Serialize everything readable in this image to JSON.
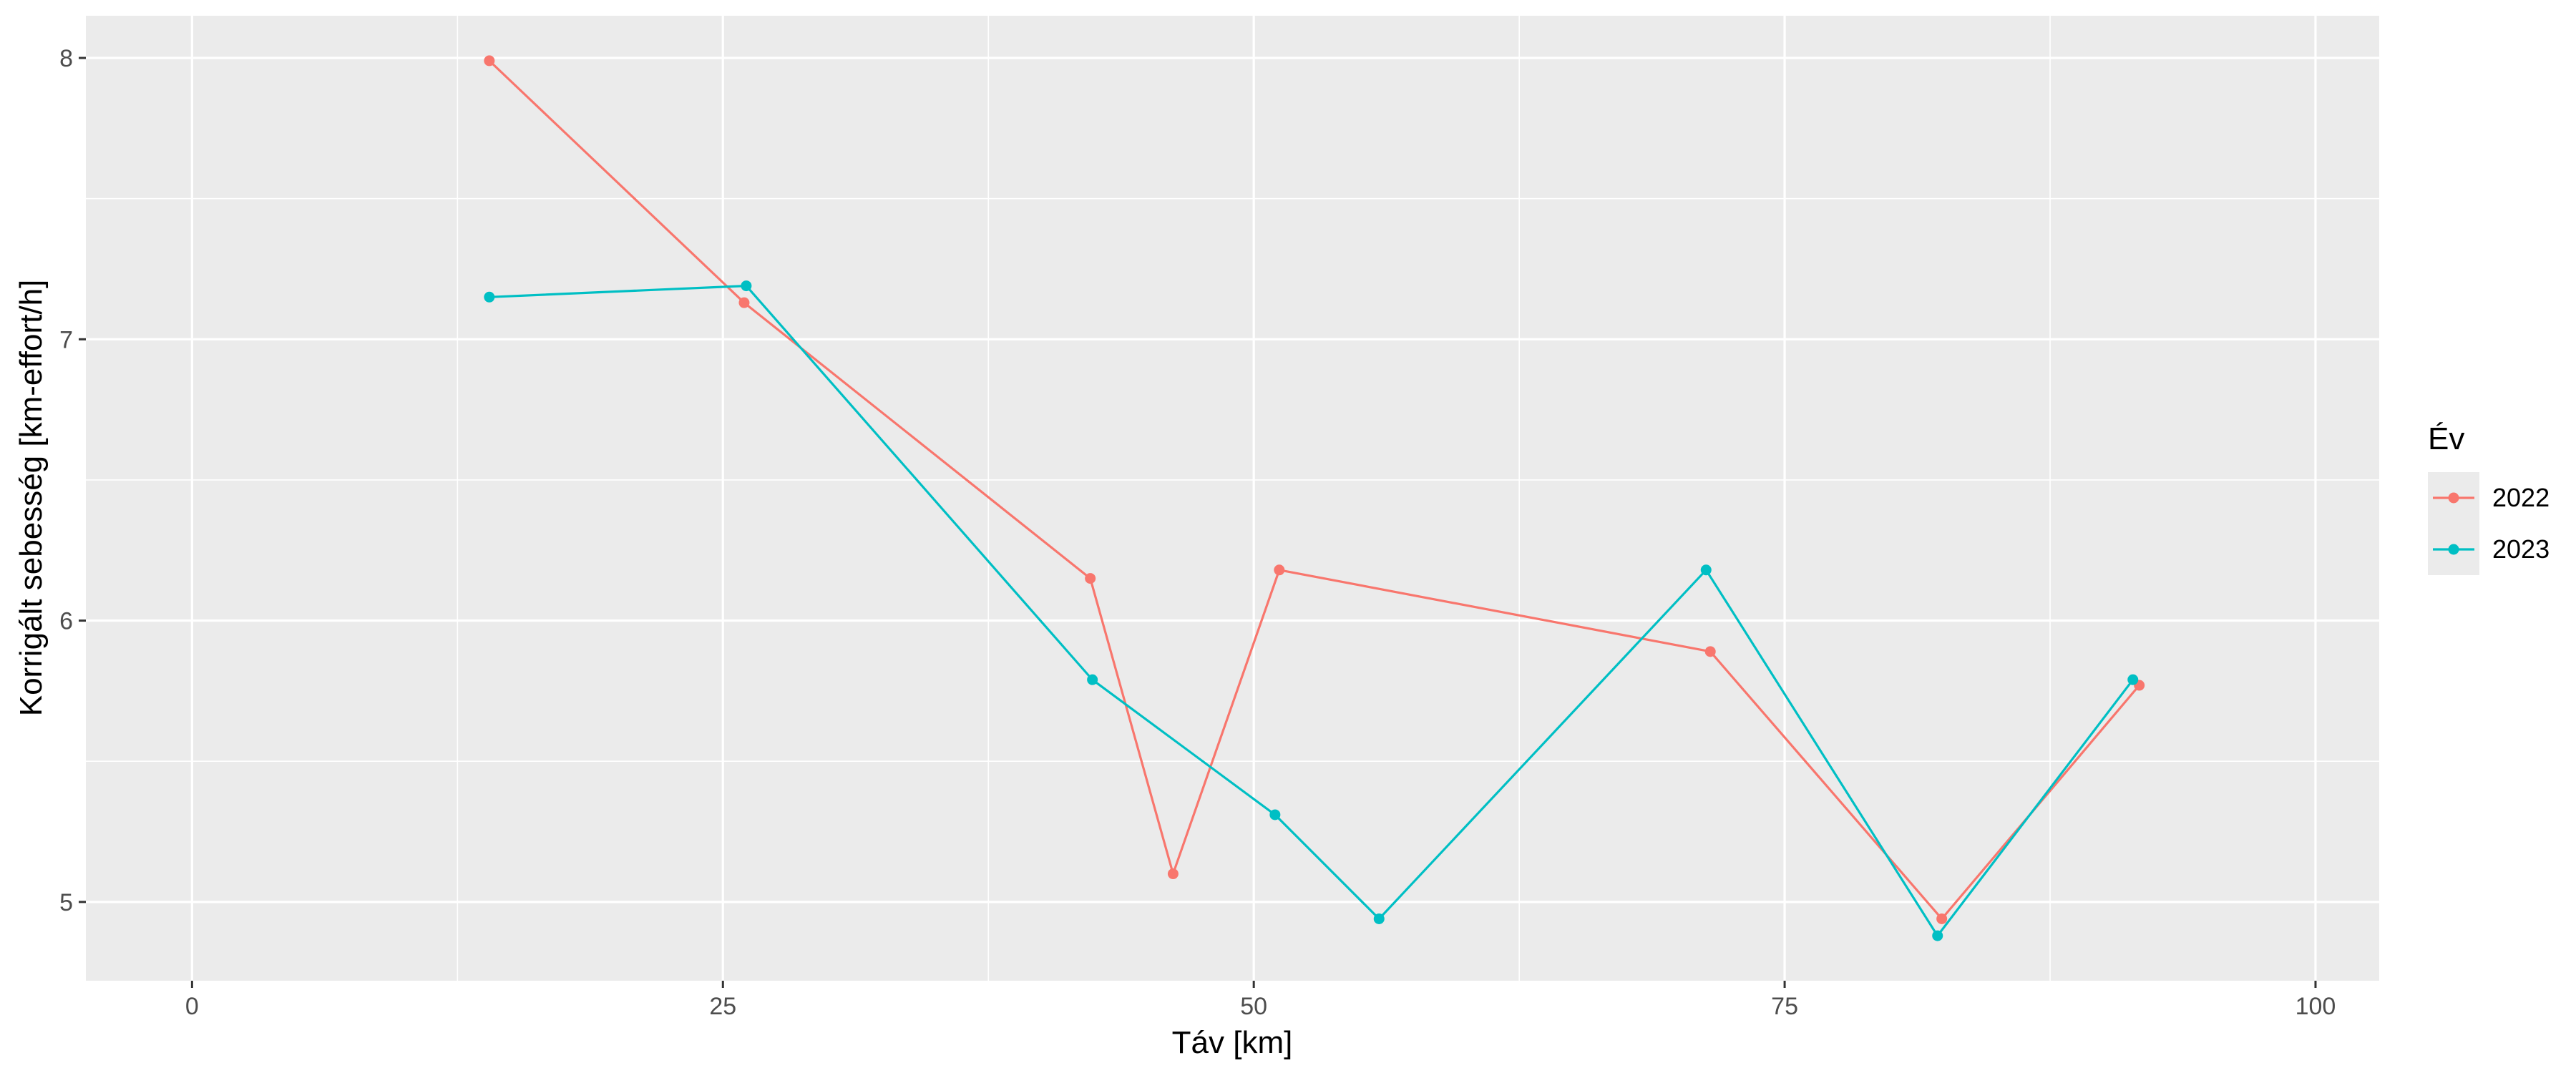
{
  "chart_data": {
    "type": "line",
    "xlabel": "Táv [km]",
    "ylabel": "Korrigált sebesség [km-effort/h]",
    "xlim": [
      -5,
      103
    ],
    "ylim": [
      4.72,
      8.15
    ],
    "x_ticks": [
      0,
      25,
      50,
      75,
      100
    ],
    "x_tick_labels": [
      "0",
      "25",
      "50",
      "75",
      "100"
    ],
    "y_ticks": [
      5,
      6,
      7,
      8
    ],
    "y_tick_labels": [
      "5",
      "6",
      "7",
      "8"
    ],
    "grid": true,
    "legend": {
      "title": "Év",
      "position": "right"
    },
    "series": [
      {
        "name": "2022",
        "color": "#F8766D",
        "x": [
          14,
          26,
          42.3,
          46.2,
          51.2,
          71.5,
          82.4,
          91.7
        ],
        "y": [
          7.99,
          7.13,
          6.15,
          5.1,
          6.18,
          5.89,
          4.94,
          5.77
        ]
      },
      {
        "name": "2023",
        "color": "#00BFC4",
        "x": [
          14,
          26.1,
          42.4,
          51,
          55.9,
          71.3,
          82.2,
          91.4
        ],
        "y": [
          7.15,
          7.19,
          5.79,
          5.31,
          4.94,
          6.18,
          4.88,
          5.79
        ]
      }
    ]
  }
}
